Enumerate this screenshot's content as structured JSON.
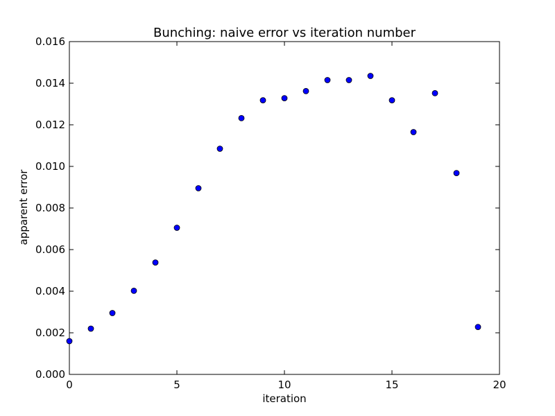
{
  "chart_data": {
    "type": "scatter",
    "title": "Bunching: naive error vs iteration number",
    "xlabel": "iteration",
    "ylabel": "apparent error",
    "xlim": [
      0,
      20
    ],
    "ylim": [
      0,
      0.016
    ],
    "x_ticks": [
      0,
      5,
      10,
      15,
      20
    ],
    "x_tick_labels": [
      "0",
      "5",
      "10",
      "15",
      "20"
    ],
    "y_ticks": [
      0,
      0.002,
      0.004,
      0.006,
      0.008,
      0.01,
      0.012,
      0.014,
      0.016
    ],
    "y_tick_labels": [
      "0.000",
      "0.002",
      "0.004",
      "0.006",
      "0.008",
      "0.010",
      "0.012",
      "0.014",
      "0.016"
    ],
    "grid": false,
    "marker_color": "#0000ff",
    "marker_edge_color": "#000000",
    "series": [
      {
        "x": [
          0,
          1,
          2,
          3,
          4,
          5,
          6,
          7,
          8,
          9,
          10,
          11,
          12,
          13,
          14,
          15,
          16,
          17,
          18,
          19
        ],
        "y": [
          0.0016,
          0.0022,
          0.00295,
          0.00402,
          0.00538,
          0.00705,
          0.00895,
          0.01085,
          0.01232,
          0.01318,
          0.01328,
          0.01362,
          0.01415,
          0.01415,
          0.01435,
          0.01318,
          0.01165,
          0.01352,
          0.00968,
          0.00228
        ]
      }
    ]
  }
}
